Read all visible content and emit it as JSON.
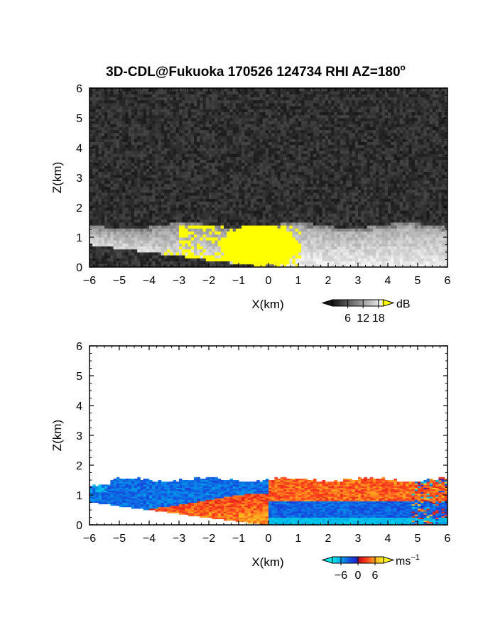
{
  "title": "3D-CDL@Fukuoka 170526 124734 RHI AZ=180",
  "title_degree": "o",
  "colors": {
    "frame": "#000000",
    "echo_yellow": "#ffff00",
    "negative_velocity": "#1f4fe0",
    "positive_velocity": "#ff5a1a"
  },
  "chart_data": [
    {
      "type": "heatmap",
      "panel": "top",
      "quantity": "backscatter intensity (grayscale)",
      "xlabel": "X(km)",
      "ylabel": "Z(km)",
      "xlim": [
        -6,
        6
      ],
      "ylim": [
        0,
        6
      ],
      "x_ticks": [
        "−6",
        "−5",
        "−4",
        "−3",
        "−2",
        "−1",
        "0",
        "1",
        "2",
        "3",
        "4",
        "5",
        "6"
      ],
      "y_ticks": [
        "0",
        "1",
        "2",
        "3",
        "4",
        "5",
        "6"
      ],
      "boundary_layer_top_km": 1.4,
      "yellow_region_x_km": [
        -3,
        1
      ],
      "colorbar": {
        "label": "dB",
        "ticks": [
          "6",
          "12",
          "18"
        ],
        "range": [
          0,
          20
        ],
        "palette": "grayscale"
      }
    },
    {
      "type": "heatmap",
      "panel": "bottom",
      "quantity": "Doppler radial velocity",
      "xlabel": "X(km)",
      "ylabel": "Z(km)",
      "xlim": [
        -6,
        6
      ],
      "ylim": [
        0,
        6
      ],
      "x_ticks": [
        "−6",
        "−5",
        "−4",
        "−3",
        "−2",
        "−1",
        "0",
        "1",
        "2",
        "3",
        "4",
        "5",
        "6"
      ],
      "y_ticks": [
        "0",
        "1",
        "2",
        "3",
        "4",
        "5",
        "6"
      ],
      "boundary_layer_top_km": 1.5,
      "colorbar": {
        "label": "ms",
        "label_exponent": "−1",
        "ticks": [
          "−6",
          "0",
          "6"
        ],
        "range": [
          -9,
          9
        ],
        "palette": "cyan-blue-red-yellow"
      }
    }
  ]
}
